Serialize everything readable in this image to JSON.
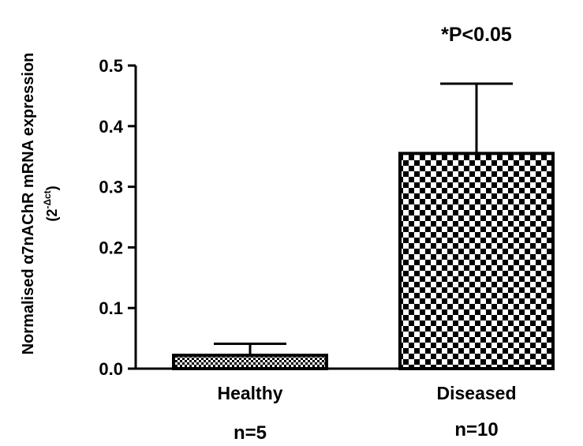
{
  "chart_data": {
    "type": "bar",
    "categories": [
      "Healthy",
      "Diseased"
    ],
    "values": [
      0.022,
      0.355
    ],
    "errors": [
      0.019,
      0.115
    ],
    "sample_sizes": [
      "n=5",
      "n=10"
    ],
    "annotation": "*P<0.05",
    "ylabel": "Normalised α7nAChR mRNA expression",
    "ylabel_unit_base": "(2",
    "ylabel_unit_sup": "-Δct",
    "ylabel_unit_close": ")",
    "ylim": [
      0,
      0.5
    ],
    "yticks": [
      "0.0",
      "0.1",
      "0.2",
      "0.3",
      "0.4",
      "0.5"
    ],
    "grid": false,
    "patterns": [
      "fine-checker",
      "coarse-checker"
    ]
  }
}
